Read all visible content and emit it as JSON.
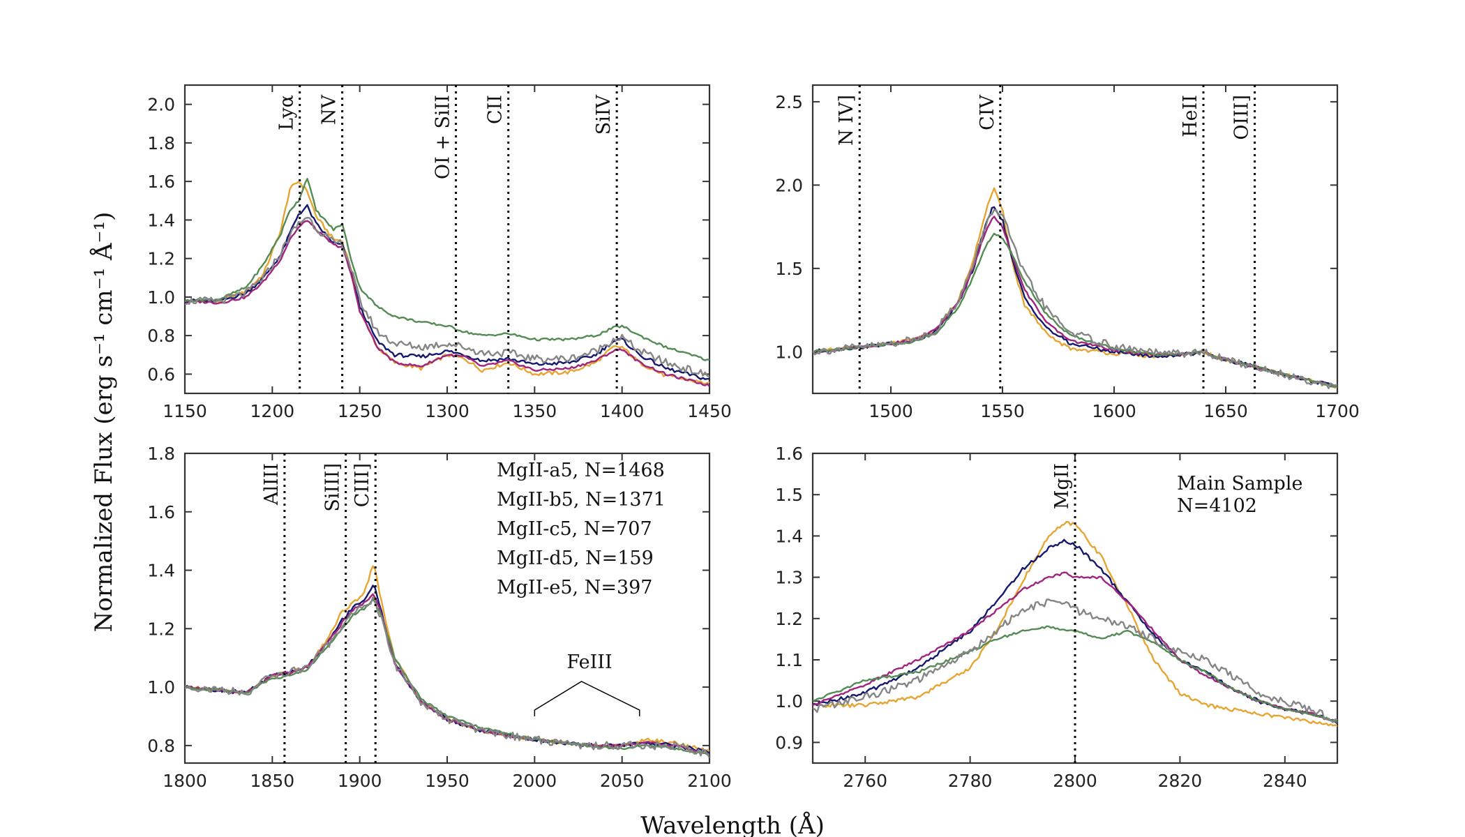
{
  "figure": {
    "ylabel": "Normalized Flux (erg s⁻¹ cm⁻¹ Å⁻¹)",
    "xlabel": "Wavelength (Å)"
  },
  "legend": [
    {
      "label": "MgII-a5, N=1468",
      "color": "#e6a532"
    },
    {
      "label": "MgII-b5, N=1371",
      "color": "#14186e"
    },
    {
      "label": "MgII-c5, N=707",
      "color": "#a0237d"
    },
    {
      "label": "MgII-d5, N=159",
      "color": "#548b54"
    },
    {
      "label": "MgII-e5, N=397",
      "color": "#858585"
    }
  ],
  "sample_note": {
    "line1": "Main Sample",
    "line2": "N=4102"
  },
  "feiii_label": "FeIII",
  "chart_data": [
    {
      "type": "line",
      "panel": "top-left",
      "xlim": [
        1150,
        1450
      ],
      "ylim": [
        0.5,
        2.1
      ],
      "xticks": [
        1150,
        1200,
        1250,
        1300,
        1350,
        1400,
        1450
      ],
      "yticks": [
        0.6,
        0.8,
        1.0,
        1.2,
        1.4,
        1.6,
        1.8,
        2.0
      ],
      "ytick_labels": [
        "0.6",
        "0.8",
        "1.0",
        "1.2",
        "1.4",
        "1.6",
        "1.8",
        "2.0"
      ],
      "line_markers": [
        {
          "label": "Lyα",
          "x": 1215.7
        },
        {
          "label": "NV",
          "x": 1240
        },
        {
          "label": "OI + SiII",
          "x": 1305
        },
        {
          "label": "CII",
          "x": 1335
        },
        {
          "label": "SiIV",
          "x": 1397
        }
      ],
      "x": [
        1150,
        1170,
        1185,
        1195,
        1205,
        1210,
        1215,
        1220,
        1225,
        1235,
        1240,
        1245,
        1250,
        1260,
        1270,
        1285,
        1300,
        1310,
        1320,
        1335,
        1350,
        1370,
        1385,
        1395,
        1400,
        1410,
        1425,
        1450
      ],
      "series": [
        {
          "name": "MgII-a5, N=1468",
          "values": [
            0.98,
            0.98,
            1.03,
            1.12,
            1.35,
            1.56,
            1.6,
            1.55,
            1.42,
            1.3,
            1.29,
            1.15,
            0.93,
            0.74,
            0.66,
            0.63,
            0.7,
            0.68,
            0.62,
            0.66,
            0.6,
            0.61,
            0.66,
            0.74,
            0.74,
            0.66,
            0.59,
            0.55
          ]
        },
        {
          "name": "MgII-b5, N=1371",
          "values": [
            0.98,
            0.98,
            1.02,
            1.1,
            1.22,
            1.33,
            1.43,
            1.47,
            1.38,
            1.28,
            1.27,
            1.13,
            0.95,
            0.77,
            0.7,
            0.69,
            0.72,
            0.7,
            0.67,
            0.68,
            0.65,
            0.66,
            0.7,
            0.77,
            0.78,
            0.7,
            0.63,
            0.57
          ]
        },
        {
          "name": "MgII-c5, N=707",
          "values": [
            0.98,
            0.97,
            1.0,
            1.08,
            1.2,
            1.3,
            1.36,
            1.4,
            1.35,
            1.27,
            1.26,
            1.12,
            0.93,
            0.74,
            0.66,
            0.64,
            0.7,
            0.69,
            0.64,
            0.67,
            0.62,
            0.63,
            0.67,
            0.72,
            0.73,
            0.66,
            0.6,
            0.54
          ]
        },
        {
          "name": "MgII-d5, N=159",
          "values": [
            0.98,
            0.99,
            1.05,
            1.17,
            1.33,
            1.45,
            1.5,
            1.62,
            1.45,
            1.35,
            1.38,
            1.2,
            1.05,
            0.95,
            0.9,
            0.87,
            0.85,
            0.82,
            0.8,
            0.81,
            0.78,
            0.78,
            0.8,
            0.84,
            0.85,
            0.8,
            0.74,
            0.67
          ]
        },
        {
          "name": "MgII-e5, N=397",
          "values": [
            0.98,
            0.98,
            1.02,
            1.1,
            1.23,
            1.32,
            1.38,
            1.42,
            1.36,
            1.28,
            1.28,
            1.15,
            0.98,
            0.82,
            0.76,
            0.74,
            0.76,
            0.74,
            0.71,
            0.71,
            0.68,
            0.68,
            0.72,
            0.78,
            0.79,
            0.72,
            0.66,
            0.59
          ]
        }
      ]
    },
    {
      "type": "line",
      "panel": "top-right",
      "xlim": [
        1465,
        1700
      ],
      "ylim": [
        0.75,
        2.6
      ],
      "xticks": [
        1500,
        1550,
        1600,
        1650,
        1700
      ],
      "yticks": [
        1.0,
        1.5,
        2.0,
        2.5
      ],
      "ytick_labels": [
        "1.0",
        "1.5",
        "2.0",
        "2.5"
      ],
      "line_markers": [
        {
          "label": "N IV]",
          "x": 1486
        },
        {
          "label": "CIV",
          "x": 1549
        },
        {
          "label": "HeII",
          "x": 1640
        },
        {
          "label": "OIII]",
          "x": 1663
        }
      ],
      "x": [
        1465,
        1480,
        1495,
        1510,
        1520,
        1530,
        1537,
        1542,
        1546,
        1550,
        1555,
        1560,
        1570,
        1580,
        1600,
        1620,
        1635,
        1640,
        1645,
        1660,
        1680,
        1700
      ],
      "series": [
        {
          "name": "MgII-a5, N=1468",
          "values": [
            1.0,
            1.02,
            1.04,
            1.07,
            1.13,
            1.3,
            1.55,
            1.82,
            1.98,
            1.85,
            1.5,
            1.28,
            1.1,
            1.02,
            0.99,
            0.97,
            0.99,
            1.0,
            0.97,
            0.92,
            0.85,
            0.79
          ]
        },
        {
          "name": "MgII-b5, N=1371",
          "values": [
            1.0,
            1.02,
            1.04,
            1.06,
            1.12,
            1.28,
            1.5,
            1.74,
            1.88,
            1.79,
            1.52,
            1.32,
            1.14,
            1.05,
            1.0,
            0.97,
            0.99,
            1.0,
            0.97,
            0.92,
            0.85,
            0.79
          ]
        },
        {
          "name": "MgII-c5, N=707",
          "values": [
            1.0,
            1.02,
            1.04,
            1.07,
            1.13,
            1.29,
            1.5,
            1.71,
            1.82,
            1.75,
            1.55,
            1.37,
            1.17,
            1.07,
            1.01,
            0.98,
            0.99,
            1.0,
            0.97,
            0.92,
            0.85,
            0.79
          ]
        },
        {
          "name": "MgII-d5, N=159",
          "values": [
            1.0,
            1.02,
            1.04,
            1.06,
            1.11,
            1.26,
            1.45,
            1.62,
            1.71,
            1.68,
            1.57,
            1.42,
            1.22,
            1.1,
            1.02,
            0.98,
            0.99,
            1.0,
            0.97,
            0.92,
            0.85,
            0.79
          ]
        },
        {
          "name": "MgII-e5, N=397",
          "values": [
            1.0,
            1.02,
            1.04,
            1.07,
            1.13,
            1.3,
            1.52,
            1.74,
            1.86,
            1.82,
            1.63,
            1.46,
            1.25,
            1.12,
            1.03,
            0.99,
            0.99,
            1.0,
            0.97,
            0.92,
            0.85,
            0.79
          ]
        }
      ]
    },
    {
      "type": "line",
      "panel": "bottom-left",
      "xlim": [
        1800,
        2100
      ],
      "ylim": [
        0.74,
        1.8
      ],
      "xticks": [
        1800,
        1850,
        1900,
        1950,
        2000,
        2050,
        2100
      ],
      "yticks": [
        0.8,
        1.0,
        1.2,
        1.4,
        1.6,
        1.8
      ],
      "ytick_labels": [
        "0.8",
        "1.0",
        "1.2",
        "1.4",
        "1.6",
        "1.8"
      ],
      "line_markers": [
        {
          "label": "AlIII",
          "x": 1857
        },
        {
          "label": "SiIII]",
          "x": 1892
        },
        {
          "label": "CIII]",
          "x": 1909
        }
      ],
      "feiii_range": [
        2000,
        2060
      ],
      "x": [
        1800,
        1820,
        1835,
        1850,
        1860,
        1870,
        1880,
        1890,
        1897,
        1903,
        1908,
        1912,
        1920,
        1935,
        1950,
        1970,
        2000,
        2030,
        2050,
        2065,
        2080,
        2100
      ],
      "series": [
        {
          "name": "MgII-a5, N=1468",
          "values": [
            1.0,
            0.99,
            0.98,
            1.04,
            1.05,
            1.07,
            1.15,
            1.26,
            1.29,
            1.33,
            1.43,
            1.3,
            1.1,
            0.95,
            0.89,
            0.85,
            0.82,
            0.8,
            0.8,
            0.82,
            0.81,
            0.78
          ]
        },
        {
          "name": "MgII-b5, N=1371",
          "values": [
            1.0,
            0.99,
            0.98,
            1.04,
            1.05,
            1.07,
            1.14,
            1.23,
            1.28,
            1.3,
            1.35,
            1.27,
            1.08,
            0.95,
            0.89,
            0.85,
            0.82,
            0.8,
            0.8,
            0.81,
            0.8,
            0.78
          ]
        },
        {
          "name": "MgII-c5, N=707",
          "values": [
            1.0,
            0.99,
            0.98,
            1.04,
            1.05,
            1.07,
            1.14,
            1.22,
            1.27,
            1.29,
            1.32,
            1.26,
            1.08,
            0.95,
            0.89,
            0.85,
            0.82,
            0.8,
            0.8,
            0.81,
            0.8,
            0.77
          ]
        },
        {
          "name": "MgII-d5, N=159",
          "values": [
            1.0,
            0.99,
            0.98,
            1.03,
            1.04,
            1.06,
            1.13,
            1.2,
            1.25,
            1.27,
            1.3,
            1.25,
            1.1,
            0.96,
            0.9,
            0.86,
            0.82,
            0.8,
            0.79,
            0.8,
            0.79,
            0.77
          ]
        },
        {
          "name": "MgII-e5, N=397",
          "values": [
            1.0,
            0.99,
            0.98,
            1.04,
            1.05,
            1.07,
            1.13,
            1.21,
            1.26,
            1.28,
            1.3,
            1.24,
            1.08,
            0.95,
            0.89,
            0.85,
            0.82,
            0.8,
            0.8,
            0.8,
            0.8,
            0.77
          ]
        }
      ]
    },
    {
      "type": "line",
      "panel": "bottom-right",
      "xlim": [
        2750,
        2850
      ],
      "ylim": [
        0.85,
        1.6
      ],
      "xticks": [
        2760,
        2780,
        2800,
        2820,
        2840
      ],
      "yticks": [
        0.9,
        1.0,
        1.1,
        1.2,
        1.3,
        1.4,
        1.5,
        1.6
      ],
      "ytick_labels": [
        "0.9",
        "1.0",
        "1.1",
        "1.2",
        "1.3",
        "1.4",
        "1.5",
        "1.6"
      ],
      "line_markers": [
        {
          "label": "MgII",
          "x": 2800
        }
      ],
      "x": [
        2750,
        2760,
        2770,
        2780,
        2785,
        2790,
        2795,
        2798,
        2800,
        2805,
        2810,
        2815,
        2820,
        2825,
        2830,
        2835,
        2840,
        2845,
        2850
      ],
      "series": [
        {
          "name": "MgII-a5, N=1468",
          "values": [
            0.99,
            0.99,
            1.01,
            1.08,
            1.17,
            1.29,
            1.4,
            1.43,
            1.43,
            1.35,
            1.23,
            1.1,
            1.02,
            0.99,
            0.98,
            0.97,
            0.96,
            0.95,
            0.94
          ]
        },
        {
          "name": "MgII-b5, N=1371",
          "values": [
            0.99,
            1.02,
            1.08,
            1.17,
            1.24,
            1.32,
            1.37,
            1.39,
            1.38,
            1.32,
            1.24,
            1.16,
            1.1,
            1.07,
            1.03,
            1.0,
            0.98,
            0.97,
            0.95
          ]
        },
        {
          "name": "MgII-c5, N=707",
          "values": [
            0.99,
            1.04,
            1.1,
            1.17,
            1.22,
            1.27,
            1.3,
            1.31,
            1.3,
            1.3,
            1.24,
            1.17,
            1.1,
            1.06,
            1.03,
            1.0,
            0.98,
            0.97,
            0.95
          ]
        },
        {
          "name": "MgII-d5, N=159",
          "values": [
            1.0,
            1.05,
            1.07,
            1.12,
            1.15,
            1.17,
            1.18,
            1.17,
            1.17,
            1.15,
            1.17,
            1.14,
            1.1,
            1.07,
            1.03,
            1.0,
            0.98,
            0.97,
            0.95
          ]
        },
        {
          "name": "MgII-e5, N=397",
          "values": [
            0.98,
            1.01,
            1.05,
            1.12,
            1.17,
            1.22,
            1.24,
            1.24,
            1.22,
            1.2,
            1.18,
            1.15,
            1.12,
            1.1,
            1.06,
            1.02,
            1.0,
            0.98,
            0.95
          ]
        }
      ]
    }
  ]
}
